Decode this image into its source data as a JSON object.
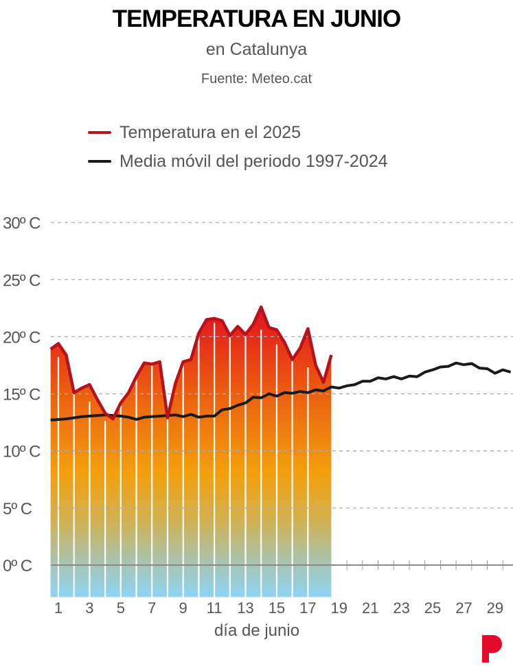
{
  "chart_data": {
    "type": "line",
    "title": "TEMPERATURA EN JUNIO",
    "subtitle": "en Catalunya",
    "source": "Fuente: Meteo.cat",
    "xlabel": "día de junio",
    "ylabel": "",
    "ylim": [
      -3,
      30
    ],
    "xlim": [
      0.5,
      30.3
    ],
    "yticks": [
      0,
      5,
      10,
      15,
      20,
      25,
      30
    ],
    "ytick_labels": [
      "0º C",
      "5º C",
      "10º C",
      "15º C",
      "20º C",
      "25º C",
      "30º C"
    ],
    "xticks": [
      1,
      3,
      5,
      7,
      9,
      11,
      13,
      15,
      17,
      19,
      21,
      23,
      25,
      27,
      29
    ],
    "xtick_labels": [
      "1",
      "3",
      "5",
      "7",
      "9",
      "11",
      "13",
      "15",
      "17",
      "19",
      "21",
      "23",
      "25",
      "27",
      "29"
    ],
    "grid": true,
    "legend_position": "top-left",
    "series": [
      {
        "name": "Temperatura en el 2025",
        "color": "#b5121b",
        "x": [
          0.5,
          1,
          1.5,
          2,
          2.5,
          3,
          3.5,
          4,
          4.5,
          5,
          5.5,
          6,
          6.5,
          7,
          7.5,
          8,
          8.5,
          9,
          9.5,
          10,
          10.5,
          11,
          11.5,
          12,
          12.5,
          13,
          13.5,
          14,
          14.5,
          15,
          15.5,
          16,
          16.5,
          17,
          17.5,
          18,
          18.5
        ],
        "values": [
          18.9,
          19.4,
          18.4,
          15.1,
          15.5,
          15.8,
          14.5,
          13.3,
          12.8,
          14.2,
          15.1,
          16.5,
          17.7,
          17.6,
          17.8,
          12.9,
          15.9,
          17.8,
          18.0,
          20.3,
          21.5,
          21.6,
          21.4,
          20.1,
          20.9,
          20.2,
          21.1,
          22.6,
          20.8,
          20.6,
          19.5,
          18.0,
          19.0,
          20.7,
          17.5,
          16.0,
          18.4
        ]
      },
      {
        "name": "Media móvil del periodo 1997-2024",
        "color": "#1a1a1a",
        "x": [
          0.5,
          1,
          1.5,
          2,
          2.5,
          3,
          3.5,
          4,
          4.5,
          5,
          5.5,
          6,
          6.5,
          7,
          7.5,
          8,
          8.5,
          9,
          9.5,
          10,
          10.5,
          11,
          11.5,
          12,
          12.5,
          13,
          13.5,
          14,
          14.5,
          15,
          15.5,
          16,
          16.5,
          17,
          17.5,
          18,
          18.5,
          19,
          19.5,
          20,
          20.5,
          21,
          21.5,
          22,
          22.5,
          23,
          23.5,
          24,
          24.5,
          25,
          25.5,
          26,
          26.5,
          27,
          27.5,
          28,
          28.5,
          29,
          29.5,
          30
        ],
        "values": [
          12.7,
          12.75,
          12.8,
          12.9,
          13.0,
          13.05,
          13.1,
          13.15,
          13.1,
          13.05,
          12.95,
          12.75,
          12.95,
          13.0,
          13.05,
          13.1,
          13.15,
          13.0,
          13.2,
          12.95,
          13.05,
          13.05,
          13.6,
          13.7,
          14.0,
          14.2,
          14.7,
          14.65,
          15.0,
          14.8,
          15.1,
          15.05,
          15.2,
          15.1,
          15.35,
          15.25,
          15.6,
          15.5,
          15.7,
          15.8,
          16.1,
          16.1,
          16.4,
          16.3,
          16.5,
          16.3,
          16.55,
          16.5,
          16.9,
          17.1,
          17.35,
          17.4,
          17.7,
          17.55,
          17.65,
          17.25,
          17.2,
          16.8,
          17.1,
          16.9
        ]
      }
    ],
    "area_fill": {
      "series": "Temperatura en el 2025",
      "baseline": -2.8,
      "gradient_stops": [
        {
          "temp": 22,
          "color": "#e4161b"
        },
        {
          "temp": 15,
          "color": "#ec5f11"
        },
        {
          "temp": 8,
          "color": "#f3a00c"
        },
        {
          "temp": 4,
          "color": "#d3b04f"
        },
        {
          "temp": 0,
          "color": "#a5c5b5"
        },
        {
          "temp": -2.8,
          "color": "#8fd3f5"
        }
      ]
    }
  },
  "colors": {
    "grid": "#aaaaaa",
    "axis": "#888888",
    "divider": "#ffffff",
    "logo": "#e30a2b"
  },
  "logo": {
    "icon": "publisher-p-logo"
  }
}
